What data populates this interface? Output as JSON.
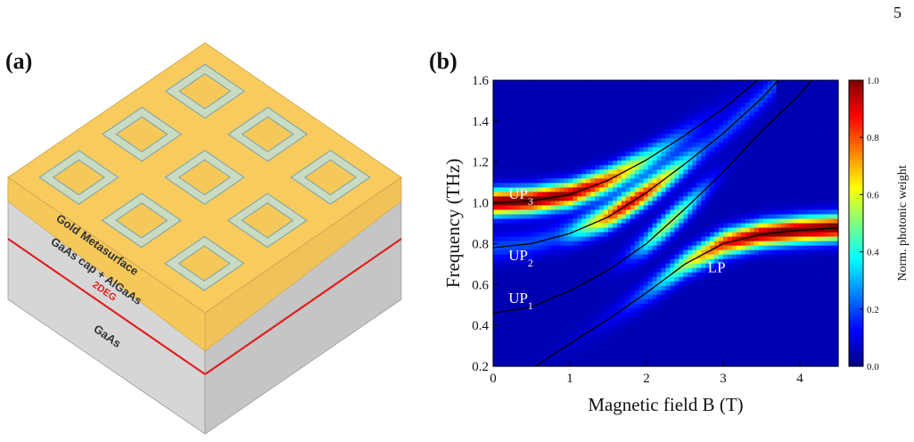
{
  "page": {
    "number": "5"
  },
  "panel_a": {
    "label": "(a)",
    "layers": {
      "metasurface": "Gold Metasurface",
      "cap": "GaAs cap + AlGaAs",
      "twodeg": "2DEG",
      "substrate": "GaAs"
    },
    "colors": {
      "gold": "#f5c85a",
      "gold_side": "#f2c766",
      "gray_top": "#cfcfcf",
      "gray_side": "#c2c2c2",
      "ring_fill": "#c9dbc3",
      "ring_edge": "#7aa0a8",
      "twodeg_line": "#e02020"
    }
  },
  "panel_b": {
    "label": "(b)",
    "chart_data": {
      "type": "heatmap",
      "xlabel": "Magnetic field B (T)",
      "ylabel": "Frequency (THz)",
      "colorbar_label": "Norm. photonic weight",
      "xlim": [
        0,
        4.5
      ],
      "ylim": [
        0.2,
        1.6
      ],
      "xticks": [
        "0",
        "1",
        "2",
        "3",
        "4"
      ],
      "yticks": [
        "0.2",
        "0.4",
        "0.6",
        "0.8",
        "1.0",
        "1.2",
        "1.4",
        "1.6"
      ],
      "colorbar_range": [
        0.0,
        1.0
      ],
      "colorbar_ticks": [
        "0.0",
        "0.2",
        "0.4",
        "0.6",
        "0.8",
        "1.0"
      ],
      "colormap": "jet",
      "branch_labels": [
        {
          "text": "UP",
          "sub": "3",
          "b": 0.2,
          "f": 1.02
        },
        {
          "text": "UP",
          "sub": "2",
          "b": 0.2,
          "f": 0.72
        },
        {
          "text": "UP",
          "sub": "1",
          "b": 0.2,
          "f": 0.51
        },
        {
          "text": "LP",
          "sub": "",
          "b": 2.8,
          "f": 0.66
        }
      ],
      "series": [
        {
          "name": "UP3",
          "f_at_B": [
            [
              0,
              1.0
            ],
            [
              0.5,
              1.01
            ],
            [
              1.0,
              1.04
            ],
            [
              1.5,
              1.11
            ],
            [
              2.0,
              1.21
            ],
            [
              2.5,
              1.33
            ],
            [
              3.0,
              1.46
            ],
            [
              3.45,
              1.6
            ]
          ]
        },
        {
          "name": "UP2",
          "f_at_B": [
            [
              0,
              0.78
            ],
            [
              0.5,
              0.8
            ],
            [
              1.0,
              0.85
            ],
            [
              1.5,
              0.93
            ],
            [
              2.0,
              1.05
            ],
            [
              2.5,
              1.19
            ],
            [
              3.0,
              1.34
            ],
            [
              3.5,
              1.51
            ],
            [
              3.72,
              1.6
            ]
          ]
        },
        {
          "name": "UP1",
          "f_at_B": [
            [
              0,
              0.46
            ],
            [
              0.5,
              0.49
            ],
            [
              1.0,
              0.57
            ],
            [
              1.5,
              0.67
            ],
            [
              2.0,
              0.8
            ],
            [
              2.5,
              0.97
            ],
            [
              3.0,
              1.15
            ],
            [
              3.5,
              1.35
            ],
            [
              4.0,
              1.53
            ],
            [
              4.15,
              1.6
            ]
          ]
        },
        {
          "name": "LP",
          "f_at_B": [
            [
              0.55,
              0.2
            ],
            [
              1.0,
              0.31
            ],
            [
              1.5,
              0.43
            ],
            [
              2.0,
              0.56
            ],
            [
              2.5,
              0.7
            ],
            [
              3.0,
              0.8
            ],
            [
              3.5,
              0.846
            ],
            [
              4.0,
              0.866
            ],
            [
              4.5,
              0.877
            ]
          ]
        }
      ]
    }
  }
}
